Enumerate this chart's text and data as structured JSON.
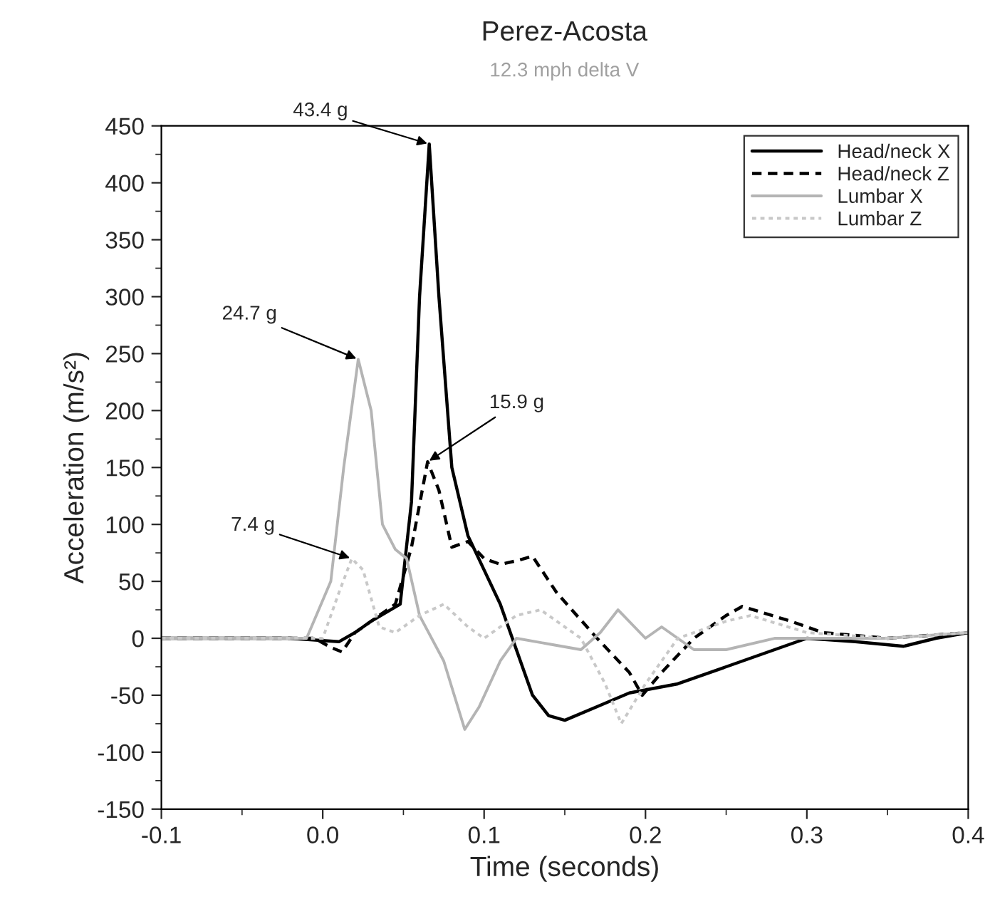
{
  "chart_data": {
    "type": "line",
    "title": "Perez-Acosta",
    "subtitle": "12.3 mph delta V",
    "xlabel": "Time (seconds)",
    "ylabel": "Acceleration (m/s²)",
    "xlim": [
      -0.1,
      0.4
    ],
    "xticks": [
      {
        "value": -0.1,
        "label": "-0.1"
      },
      {
        "value": 0,
        "label": "0.0"
      },
      {
        "value": 0.1,
        "label": "0.1"
      },
      {
        "value": 0.2,
        "label": "0.2"
      },
      {
        "value": 0.3,
        "label": "0.3"
      },
      {
        "value": 0.4,
        "label": "0.4"
      }
    ],
    "ylim": [
      -150,
      450
    ],
    "yticks": [
      -150,
      -100,
      -50,
      0,
      50,
      100,
      150,
      200,
      250,
      300,
      350,
      400,
      450
    ],
    "grid": false,
    "legend": "top right",
    "marker": "none",
    "series": [
      {
        "name": "Head/neck X",
        "color": "#000000",
        "line_style": "solid",
        "x": [
          -0.1,
          -0.02,
          0.0,
          0.01,
          0.02,
          0.03,
          0.048,
          0.055,
          0.06,
          0.066,
          0.072,
          0.08,
          0.09,
          0.1,
          0.11,
          0.12,
          0.13,
          0.14,
          0.15,
          0.17,
          0.19,
          0.22,
          0.25,
          0.28,
          0.3,
          0.33,
          0.36,
          0.38,
          0.4
        ],
        "values": [
          0,
          0,
          -2,
          -3,
          5,
          15,
          30,
          120,
          300,
          434,
          300,
          150,
          90,
          60,
          30,
          -10,
          -50,
          -68,
          -72,
          -60,
          -48,
          -40,
          -25,
          -10,
          0,
          -3,
          -7,
          0,
          5
        ]
      },
      {
        "name": "Head/neck Z",
        "color": "#000000",
        "line_style": "dashed",
        "x": [
          -0.1,
          -0.005,
          0.005,
          0.012,
          0.02,
          0.03,
          0.045,
          0.055,
          0.065,
          0.072,
          0.08,
          0.09,
          0.1,
          0.11,
          0.12,
          0.13,
          0.145,
          0.17,
          0.19,
          0.198,
          0.21,
          0.23,
          0.25,
          0.26,
          0.29,
          0.31,
          0.35,
          0.4
        ],
        "values": [
          0,
          0,
          -8,
          -12,
          5,
          15,
          30,
          80,
          155,
          130,
          80,
          85,
          70,
          65,
          68,
          72,
          40,
          0,
          -30,
          -50,
          -30,
          0,
          20,
          28,
          15,
          5,
          0,
          5
        ]
      },
      {
        "name": "Lumbar X",
        "color": "#b4b4b4",
        "line_style": "solid",
        "x": [
          -0.1,
          -0.01,
          0.005,
          0.013,
          0.022,
          0.03,
          0.037,
          0.045,
          0.052,
          0.06,
          0.075,
          0.088,
          0.097,
          0.11,
          0.12,
          0.14,
          0.16,
          0.172,
          0.183,
          0.2,
          0.21,
          0.23,
          0.25,
          0.28,
          0.35,
          0.4
        ],
        "values": [
          0,
          0,
          50,
          150,
          245,
          200,
          100,
          78,
          70,
          20,
          -20,
          -80,
          -60,
          -20,
          0,
          -5,
          -10,
          5,
          25,
          0,
          10,
          -10,
          -10,
          0,
          0,
          5
        ]
      },
      {
        "name": "Lumbar Z",
        "color": "#c8c8c8",
        "line_style": "dotted",
        "x": [
          -0.1,
          0.0,
          0.01,
          0.018,
          0.025,
          0.035,
          0.045,
          0.06,
          0.075,
          0.09,
          0.1,
          0.12,
          0.135,
          0.16,
          0.175,
          0.185,
          0.2,
          0.22,
          0.25,
          0.265,
          0.3,
          0.35,
          0.4
        ],
        "values": [
          0,
          0,
          40,
          70,
          60,
          10,
          5,
          20,
          30,
          10,
          0,
          20,
          25,
          0,
          -40,
          -75,
          -40,
          0,
          15,
          20,
          5,
          0,
          5
        ]
      }
    ],
    "annotations": [
      {
        "text": "43.4 g",
        "x": 0.066,
        "y": 434
      },
      {
        "text": "24.7 g",
        "x": 0.022,
        "y": 245
      },
      {
        "text": "15.9 g",
        "x": 0.065,
        "y": 155
      },
      {
        "text": "7.4 g",
        "x": 0.018,
        "y": 70
      }
    ]
  }
}
